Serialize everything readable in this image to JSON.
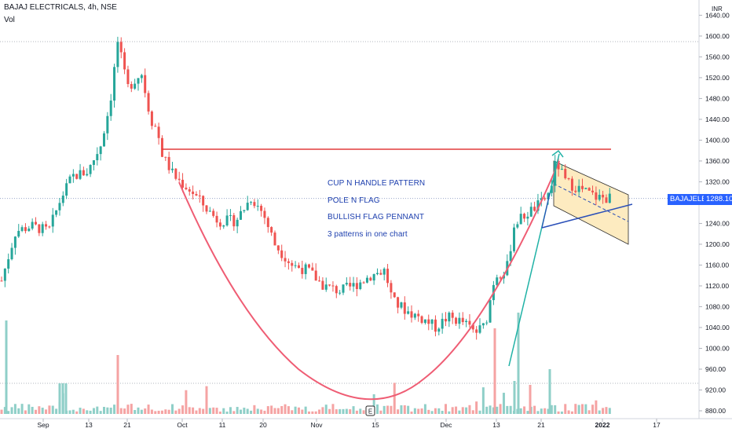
{
  "header": {
    "symbol_line": "BAJAJ ELECTRICALS, 4h, NSE",
    "volume_label": "Vol"
  },
  "annotations": {
    "line1": "CUP N HANDLE PATTERN",
    "line2": "POLE N FLAG",
    "line3": "BULLISH FLAG PENNANT",
    "line4": "3 patterns in one chart"
  },
  "price_axis": {
    "currency": "INR",
    "ticks": [
      "1640.00",
      "1600.00",
      "1560.00",
      "1520.00",
      "1480.00",
      "1440.00",
      "1400.00",
      "1360.00",
      "1320.00",
      "1280.00",
      "1240.00",
      "1200.00",
      "1160.00",
      "1120.00",
      "1080.00",
      "1040.00",
      "1000.00",
      "960.00",
      "920.00",
      "880.00"
    ]
  },
  "time_axis": {
    "ticks": [
      "Sep",
      "13",
      "21",
      "Oct",
      "11",
      "20",
      "Nov",
      "15",
      "Dec",
      "13",
      "21",
      "2022",
      "17"
    ]
  },
  "badges": {
    "symbol": "BAJAJELEC",
    "last_price": "1288.10"
  },
  "colors": {
    "up": "#26a69a",
    "down": "#ef5350",
    "vol_up": "#8fcfc8",
    "vol_down": "#f5a3a3",
    "cup": "#ef5d74",
    "resistance": "#e23b3b",
    "pole": "#20b2a6",
    "flag_fill": "#fdebc0",
    "trend": "#2a4fb8",
    "text_blue": "#1d3fae",
    "badge_blue": "#2962ff"
  },
  "chart_data": {
    "type": "candlestick",
    "price_axis_range": [
      870,
      1645
    ],
    "last_price": 1288.1,
    "resistance_level": 1380,
    "reference_level": 1288.1,
    "key_points": [
      {
        "date": "Sep",
        "price": 1130
      },
      {
        "date": "21 (Sep)",
        "price": 1590
      },
      {
        "date": "Oct",
        "price": 1320
      },
      {
        "date": "Nov",
        "price": 1100
      },
      {
        "date": "15 (Nov)",
        "price": 1090
      },
      {
        "date": "Dec",
        "price": 1010
      },
      {
        "date": "21 (Dec)",
        "price": 1370
      },
      {
        "date": "2022",
        "price": 1288.1
      }
    ],
    "cup_curve": [
      {
        "date": "Oct",
        "price": 1340
      },
      {
        "date": "Nov",
        "price": 1000
      },
      {
        "date": "15 (Nov)",
        "price": 893
      },
      {
        "date": "Dec",
        "price": 960
      },
      {
        "date": "21 (Dec)",
        "price": 1280
      }
    ],
    "flag_channel": {
      "upper": [
        [
          1378,
          1286
        ]
      ],
      "lower": [
        [
          1303,
          1198
        ]
      ],
      "dashed_mid": [
        [
          1330,
          1248
        ]
      ]
    },
    "pole_trendline": [
      [
        965,
        1378
      ]
    ],
    "support_trendline": [
      [
        1232,
        1283
      ]
    ]
  }
}
